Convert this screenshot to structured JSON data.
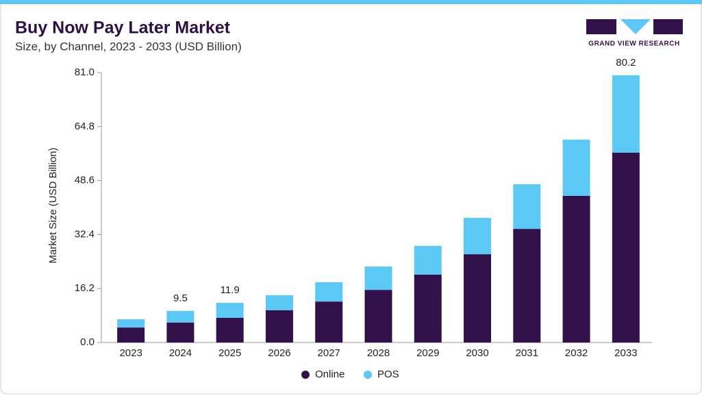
{
  "brand": "GRAND VIEW RESEARCH",
  "chart_data": {
    "type": "stacked-bar",
    "title": "Buy Now Pay Later Market",
    "subtitle": "Size, by Channel, 2023 - 2033 (USD Billion)",
    "y_label": "Market Size (USD Billion)",
    "categories": [
      "2023",
      "2024",
      "2025",
      "2026",
      "2027",
      "2028",
      "2029",
      "2030",
      "2031",
      "2032",
      "2033"
    ],
    "series": [
      {
        "name": "Online",
        "color": "#32104a",
        "values": [
          4.5,
          6.0,
          7.4,
          9.7,
          12.3,
          15.8,
          20.4,
          26.5,
          34.1,
          44.0,
          57.0
        ]
      },
      {
        "name": "POS",
        "color": "#5bc8f5",
        "values": [
          2.5,
          3.5,
          4.5,
          4.5,
          5.8,
          7.0,
          8.6,
          10.9,
          13.4,
          16.9,
          23.2
        ]
      }
    ],
    "total_labels": [
      null,
      9.5,
      11.9,
      null,
      null,
      null,
      null,
      null,
      null,
      null,
      80.2
    ],
    "ylim": [
      0,
      81
    ],
    "yticks": [
      {
        "value": 0,
        "label": "0.0"
      },
      16.2,
      32.4,
      48.6,
      64.8,
      {
        "value": 81,
        "label": "81.0"
      }
    ],
    "grid": false,
    "legend": "bottom"
  }
}
